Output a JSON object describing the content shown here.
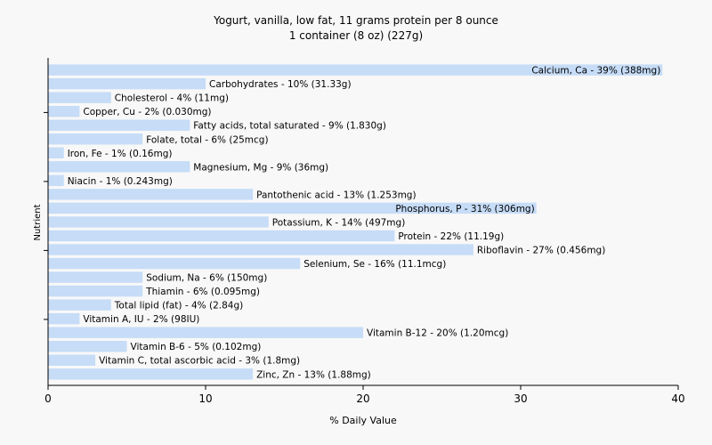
{
  "chart_data": {
    "type": "bar",
    "orientation": "horizontal",
    "title": "Yogurt, vanilla, low fat, 11 grams protein per 8 ounce",
    "subtitle": "1 container (8 oz) (227g)",
    "xlabel": "% Daily Value",
    "ylabel": "Nutrient",
    "xlim": [
      0,
      40
    ],
    "xticks": [
      0,
      10,
      20,
      30,
      40
    ],
    "grid": false,
    "bar_color": "#c6dcf7",
    "categories": [
      "Calcium, Ca - 39% (388mg)",
      "Carbohydrates - 10% (31.33g)",
      "Cholesterol - 4% (11mg)",
      "Copper, Cu - 2% (0.030mg)",
      "Fatty acids, total saturated - 9% (1.830g)",
      "Folate, total - 6% (25mcg)",
      "Iron, Fe - 1% (0.16mg)",
      "Magnesium, Mg - 9% (36mg)",
      "Niacin - 1% (0.243mg)",
      "Pantothenic acid - 13% (1.253mg)",
      "Phosphorus, P - 31% (306mg)",
      "Potassium, K - 14% (497mg)",
      "Protein - 22% (11.19g)",
      "Riboflavin - 27% (0.456mg)",
      "Selenium, Se - 16% (11.1mcg)",
      "Sodium, Na - 6% (150mg)",
      "Thiamin - 6% (0.095mg)",
      "Total lipid (fat) - 4% (2.84g)",
      "Vitamin A, IU - 2% (98IU)",
      "Vitamin B-12 - 20% (1.20mcg)",
      "Vitamin B-6 - 5% (0.102mg)",
      "Vitamin C, total ascorbic acid - 3% (1.8mg)",
      "Zinc, Zn - 13% (1.88mg)"
    ],
    "values": [
      39,
      10,
      4,
      2,
      9,
      6,
      1,
      9,
      1,
      13,
      31,
      14,
      22,
      27,
      16,
      6,
      6,
      4,
      2,
      20,
      5,
      3,
      13
    ]
  }
}
